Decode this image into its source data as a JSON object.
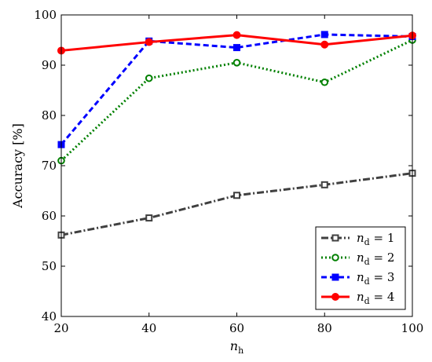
{
  "chart_data": {
    "type": "line",
    "x": [
      20,
      40,
      60,
      80,
      100
    ],
    "xlabel_main": "n",
    "xlabel_sub": "h",
    "ylabel": "Accuracy [%]",
    "xlim": [
      20,
      100
    ],
    "ylim": [
      40,
      100
    ],
    "xticks": [
      "20",
      "40",
      "60",
      "80",
      "100"
    ],
    "yticks": [
      "40",
      "50",
      "60",
      "70",
      "80",
      "90",
      "100"
    ],
    "grid": false,
    "legend_position": "bottom-right",
    "series": [
      {
        "name": "n_d = 1",
        "label_main": "n",
        "label_sub": "d",
        "label_rest": " = 1",
        "values": [
          56.2,
          59.6,
          64.1,
          66.2,
          68.5
        ],
        "color": "#404040",
        "dash": "9,3,2,3",
        "marker": "square-open"
      },
      {
        "name": "n_d = 2",
        "label_main": "n",
        "label_sub": "d",
        "label_rest": " = 2",
        "values": [
          71.0,
          87.4,
          90.5,
          86.6,
          95.0
        ],
        "color": "#008000",
        "dash": "2,3",
        "marker": "circle-open"
      },
      {
        "name": "n_d = 3",
        "label_main": "n",
        "label_sub": "d",
        "label_rest": " = 3",
        "values": [
          74.2,
          94.8,
          93.5,
          96.1,
          95.7
        ],
        "color": "#0000ff",
        "dash": "7,4",
        "marker": "square-filled"
      },
      {
        "name": "n_d = 4",
        "label_main": "n",
        "label_sub": "d",
        "label_rest": " = 4",
        "values": [
          92.9,
          94.6,
          96.0,
          94.1,
          95.9
        ],
        "color": "#ff0000",
        "dash": "",
        "marker": "circle-filled"
      }
    ]
  }
}
